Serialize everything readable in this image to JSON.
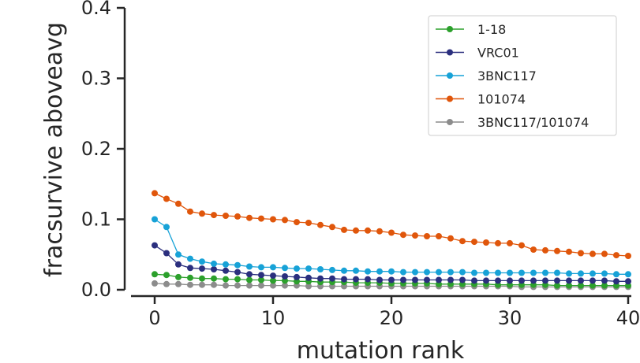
{
  "chart_data": {
    "type": "line",
    "xlabel": "mutation rank",
    "ylabel": "fracsurvive aboveavg",
    "xlim": [
      -2.5,
      40
    ],
    "ylim": [
      0,
      0.4
    ],
    "x_ticks": [
      0,
      10,
      20,
      30,
      40
    ],
    "y_ticks": [
      0.0,
      0.1,
      0.2,
      0.3,
      0.4
    ],
    "x_tick_labels": [
      "0",
      "10",
      "20",
      "30",
      "40"
    ],
    "y_tick_labels": [
      "0.0",
      "0.1",
      "0.2",
      "0.3",
      "0.4"
    ],
    "legend_position": "top-right",
    "grid": false,
    "series": [
      {
        "name": "1-18",
        "color": "#2ca02c",
        "x": [
          0,
          1,
          2,
          3,
          4,
          5,
          6,
          7,
          8,
          9,
          10,
          11,
          12,
          13,
          14,
          15,
          16,
          17,
          18,
          19,
          20,
          21,
          22,
          23,
          24,
          25,
          26,
          27,
          28,
          29,
          30,
          31,
          32,
          33,
          34,
          35,
          36,
          37,
          38,
          39,
          40
        ],
        "values": [
          0.022,
          0.021,
          0.018,
          0.017,
          0.016,
          0.016,
          0.015,
          0.015,
          0.014,
          0.014,
          0.013,
          0.013,
          0.012,
          0.012,
          0.011,
          0.011,
          0.011,
          0.01,
          0.01,
          0.01,
          0.009,
          0.009,
          0.009,
          0.009,
          0.008,
          0.008,
          0.008,
          0.008,
          0.008,
          0.007,
          0.007,
          0.007,
          0.007,
          0.007,
          0.006,
          0.006,
          0.006,
          0.006,
          0.006,
          0.006,
          0.006
        ]
      },
      {
        "name": "VRC01",
        "color": "#2b2f7e",
        "x": [
          0,
          1,
          2,
          3,
          4,
          5,
          6,
          7,
          8,
          9,
          10,
          11,
          12,
          13,
          14,
          15,
          16,
          17,
          18,
          19,
          20,
          21,
          22,
          23,
          24,
          25,
          26,
          27,
          28,
          29,
          30,
          31,
          32,
          33,
          34,
          35,
          36,
          37,
          38,
          39,
          40
        ],
        "values": [
          0.063,
          0.052,
          0.036,
          0.031,
          0.03,
          0.029,
          0.027,
          0.025,
          0.022,
          0.021,
          0.02,
          0.019,
          0.018,
          0.017,
          0.016,
          0.016,
          0.015,
          0.015,
          0.015,
          0.014,
          0.014,
          0.014,
          0.014,
          0.014,
          0.014,
          0.014,
          0.014,
          0.013,
          0.013,
          0.013,
          0.013,
          0.013,
          0.013,
          0.013,
          0.013,
          0.013,
          0.013,
          0.013,
          0.013,
          0.012,
          0.012
        ]
      },
      {
        "name": "3BNC117",
        "color": "#17a2d7",
        "x": [
          0,
          1,
          2,
          3,
          4,
          5,
          6,
          7,
          8,
          9,
          10,
          11,
          12,
          13,
          14,
          15,
          16,
          17,
          18,
          19,
          20,
          21,
          22,
          23,
          24,
          25,
          26,
          27,
          28,
          29,
          30,
          31,
          32,
          33,
          34,
          35,
          36,
          37,
          38,
          39,
          40
        ],
        "values": [
          0.1,
          0.089,
          0.05,
          0.044,
          0.04,
          0.037,
          0.036,
          0.035,
          0.033,
          0.032,
          0.032,
          0.031,
          0.03,
          0.03,
          0.029,
          0.028,
          0.027,
          0.027,
          0.026,
          0.026,
          0.026,
          0.025,
          0.025,
          0.025,
          0.025,
          0.025,
          0.025,
          0.024,
          0.024,
          0.024,
          0.024,
          0.024,
          0.024,
          0.024,
          0.024,
          0.023,
          0.023,
          0.023,
          0.023,
          0.022,
          0.022
        ]
      },
      {
        "name": "101074",
        "color": "#e0560b",
        "x": [
          0,
          1,
          2,
          3,
          4,
          5,
          6,
          7,
          8,
          9,
          10,
          11,
          12,
          13,
          14,
          15,
          16,
          17,
          18,
          19,
          20,
          21,
          22,
          23,
          24,
          25,
          26,
          27,
          28,
          29,
          30,
          31,
          32,
          33,
          34,
          35,
          36,
          37,
          38,
          39,
          40
        ],
        "values": [
          0.137,
          0.129,
          0.122,
          0.111,
          0.108,
          0.106,
          0.105,
          0.104,
          0.102,
          0.101,
          0.1,
          0.099,
          0.096,
          0.095,
          0.092,
          0.089,
          0.085,
          0.084,
          0.084,
          0.083,
          0.081,
          0.078,
          0.077,
          0.076,
          0.076,
          0.073,
          0.069,
          0.068,
          0.067,
          0.066,
          0.066,
          0.063,
          0.057,
          0.056,
          0.055,
          0.054,
          0.052,
          0.051,
          0.051,
          0.049,
          0.048
        ]
      },
      {
        "name": "3BNC117/101074",
        "color": "#8c8c8c",
        "x": [
          0,
          1,
          2,
          3,
          4,
          5,
          6,
          7,
          8,
          9,
          10,
          11,
          12,
          13,
          14,
          15,
          16,
          17,
          18,
          19,
          20,
          21,
          22,
          23,
          24,
          25,
          26,
          27,
          28,
          29,
          30,
          31,
          32,
          33,
          34,
          35,
          36,
          37,
          38,
          39,
          40
        ],
        "values": [
          0.009,
          0.008,
          0.008,
          0.007,
          0.007,
          0.007,
          0.006,
          0.006,
          0.006,
          0.006,
          0.006,
          0.006,
          0.006,
          0.005,
          0.005,
          0.005,
          0.005,
          0.005,
          0.005,
          0.005,
          0.005,
          0.005,
          0.005,
          0.005,
          0.005,
          0.005,
          0.005,
          0.005,
          0.005,
          0.005,
          0.005,
          0.004,
          0.004,
          0.004,
          0.004,
          0.004,
          0.004,
          0.004,
          0.004,
          0.004,
          0.004
        ]
      }
    ]
  }
}
